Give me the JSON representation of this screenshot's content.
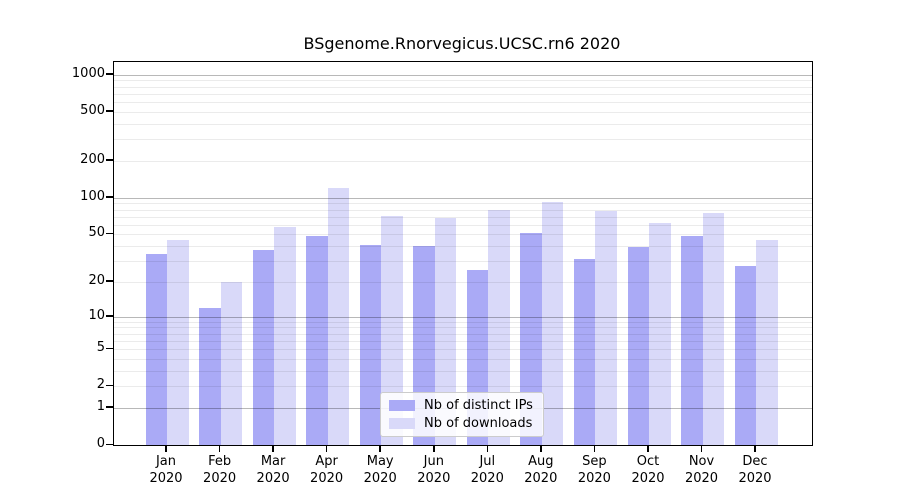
{
  "chart_data": {
    "type": "bar",
    "title": "BSgenome.Rnorvegicus.UCSC.rn6 2020",
    "scale": "log1p",
    "grid": true,
    "categories": [
      "Jan\n2020",
      "Feb\n2020",
      "Mar\n2020",
      "Apr\n2020",
      "May\n2020",
      "Jun\n2020",
      "Jul\n2020",
      "Aug\n2020",
      "Sep\n2020",
      "Oct\n2020",
      "Nov\n2020",
      "Dec\n2020"
    ],
    "series": [
      {
        "name": "Nb of distinct IPs",
        "color": "#aaaaf6",
        "values": [
          34,
          12,
          37,
          48,
          41,
          40,
          25,
          51,
          31,
          39,
          48,
          27
        ]
      },
      {
        "name": "Nb of downloads",
        "color": "#d9d9f9",
        "values": [
          45,
          20,
          57,
          120,
          71,
          68,
          79,
          92,
          78,
          62,
          75,
          45
        ]
      }
    ],
    "yticks": [
      0,
      1,
      2,
      5,
      10,
      20,
      50,
      100,
      200,
      500,
      1000
    ],
    "ylim": [
      0,
      1270
    ],
    "xlabel": "",
    "ylabel": "",
    "legend_position": "lower center"
  }
}
